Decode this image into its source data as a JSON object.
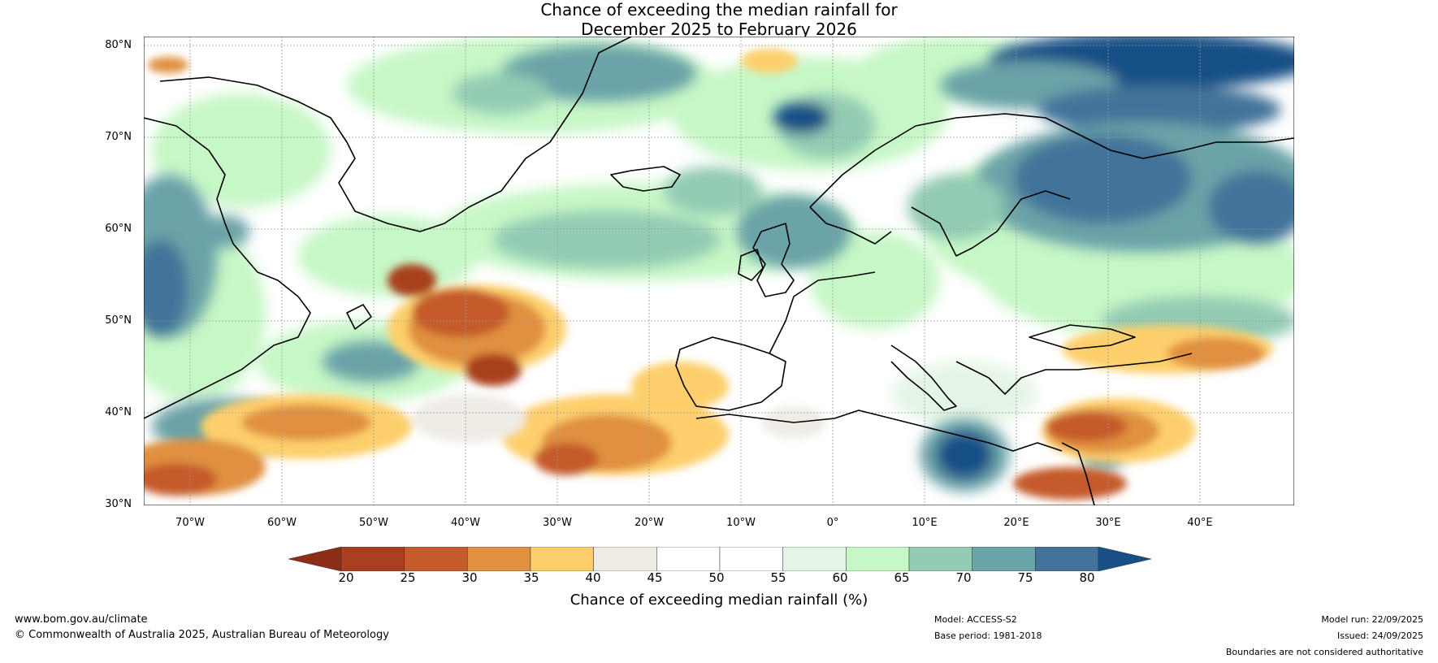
{
  "title": {
    "line1": "Chance of exceeding the median rainfall for",
    "line2": "December 2025 to February 2026"
  },
  "map": {
    "latitude_labels": [
      "80°N",
      "70°N",
      "60°N",
      "50°N",
      "40°N",
      "30°N"
    ],
    "longitude_labels": [
      "70°W",
      "60°W",
      "50°W",
      "40°W",
      "30°W",
      "20°W",
      "10°W",
      "0°",
      "10°E",
      "20°E",
      "30°E",
      "40°E"
    ],
    "lat_range": [
      30,
      80
    ],
    "lon_range": [
      -75,
      50
    ],
    "ocean_color": "#ffffff",
    "coast_color": "#000000"
  },
  "colorbar": {
    "ticks": [
      "20",
      "25",
      "30",
      "35",
      "40",
      "45",
      "50",
      "55",
      "60",
      "65",
      "70",
      "75",
      "80"
    ],
    "colors": [
      "#a93f1f",
      "#c55a2b",
      "#e0903f",
      "#fdcf6c",
      "#efece6",
      "#ffffff",
      "#ffffff",
      "#e5f5e5",
      "#c6f7c6",
      "#93cbb3",
      "#6aa3a8",
      "#43739a"
    ],
    "low_color": "#8c2d17",
    "high_color": "#184f86",
    "label": "Chance of exceeding median rainfall (%)"
  },
  "footer": {
    "website": "www.bom.gov.au/climate",
    "copyright": "© Commonwealth of Australia 2025, Australian Bureau of Meteorology",
    "model": "Model: ACCESS-S2",
    "base_period": "Base period: 1981-2018",
    "model_run": "Model run: 22/09/2025",
    "issued": "Issued: 24/09/2025",
    "disclaimer": "Boundaries are not considered authoritative"
  }
}
